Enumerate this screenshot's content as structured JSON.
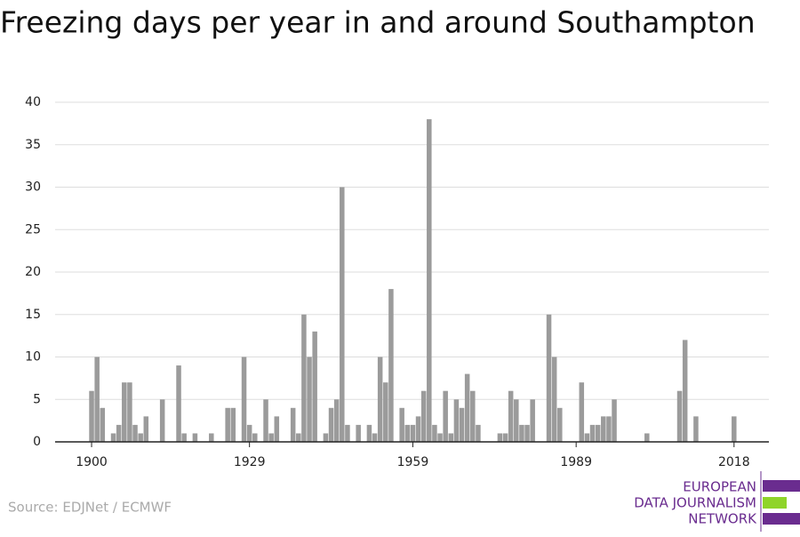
{
  "chart_data": {
    "type": "bar",
    "title": "Freezing days per year in and around Southampton",
    "source": "Source: EDJNet / ECMWF",
    "logo": [
      "EUROPEAN",
      "DATA JOURNALISM",
      "NETWORK"
    ],
    "color": "#9b9b9b",
    "x": [
      1900,
      1901,
      1902,
      1903,
      1904,
      1905,
      1906,
      1907,
      1908,
      1909,
      1910,
      1911,
      1912,
      1913,
      1914,
      1915,
      1916,
      1917,
      1918,
      1919,
      1920,
      1921,
      1922,
      1923,
      1924,
      1925,
      1926,
      1927,
      1928,
      1929,
      1930,
      1931,
      1932,
      1933,
      1934,
      1935,
      1936,
      1937,
      1938,
      1939,
      1940,
      1941,
      1942,
      1943,
      1944,
      1945,
      1946,
      1947,
      1948,
      1949,
      1950,
      1951,
      1952,
      1953,
      1954,
      1955,
      1956,
      1957,
      1958,
      1959,
      1960,
      1961,
      1962,
      1963,
      1964,
      1965,
      1966,
      1967,
      1968,
      1969,
      1970,
      1971,
      1972,
      1973,
      1974,
      1975,
      1976,
      1977,
      1978,
      1979,
      1980,
      1981,
      1982,
      1983,
      1984,
      1985,
      1986,
      1987,
      1988,
      1989,
      1990,
      1991,
      1992,
      1993,
      1994,
      1995,
      1996,
      1997,
      1998,
      1999,
      2000,
      2001,
      2002,
      2003,
      2004,
      2005,
      2006,
      2007,
      2008,
      2009,
      2010,
      2011,
      2012,
      2013,
      2014,
      2015,
      2016,
      2017,
      2018
    ],
    "values": [
      6,
      10,
      4,
      0,
      1,
      2,
      7,
      7,
      2,
      1,
      3,
      0,
      0,
      5,
      0,
      0,
      9,
      1,
      0,
      1,
      0,
      0,
      1,
      0,
      0,
      4,
      4,
      0,
      10,
      2,
      1,
      0,
      5,
      1,
      3,
      0,
      0,
      4,
      1,
      15,
      10,
      13,
      0,
      1,
      4,
      5,
      30,
      2,
      0,
      2,
      0,
      2,
      1,
      10,
      7,
      18,
      0,
      4,
      2,
      2,
      3,
      6,
      38,
      2,
      1,
      6,
      1,
      5,
      4,
      8,
      6,
      2,
      0,
      0,
      0,
      1,
      1,
      6,
      5,
      2,
      2,
      5,
      0,
      0,
      15,
      10,
      4,
      0,
      0,
      0,
      7,
      1,
      2,
      2,
      3,
      3,
      5,
      0,
      0,
      0,
      0,
      0,
      1,
      0,
      0,
      0,
      0,
      0,
      6,
      12,
      0,
      3,
      0,
      0,
      0,
      0,
      0,
      0,
      3
    ],
    "xlim": [
      1893.3,
      2024.4
    ],
    "xticks": [
      1900,
      1929,
      1959,
      1989,
      2018
    ],
    "ylim": [
      0,
      40
    ],
    "yticks": [
      0,
      5,
      10,
      15,
      20,
      25,
      30,
      35,
      40
    ],
    "grid": true
  }
}
